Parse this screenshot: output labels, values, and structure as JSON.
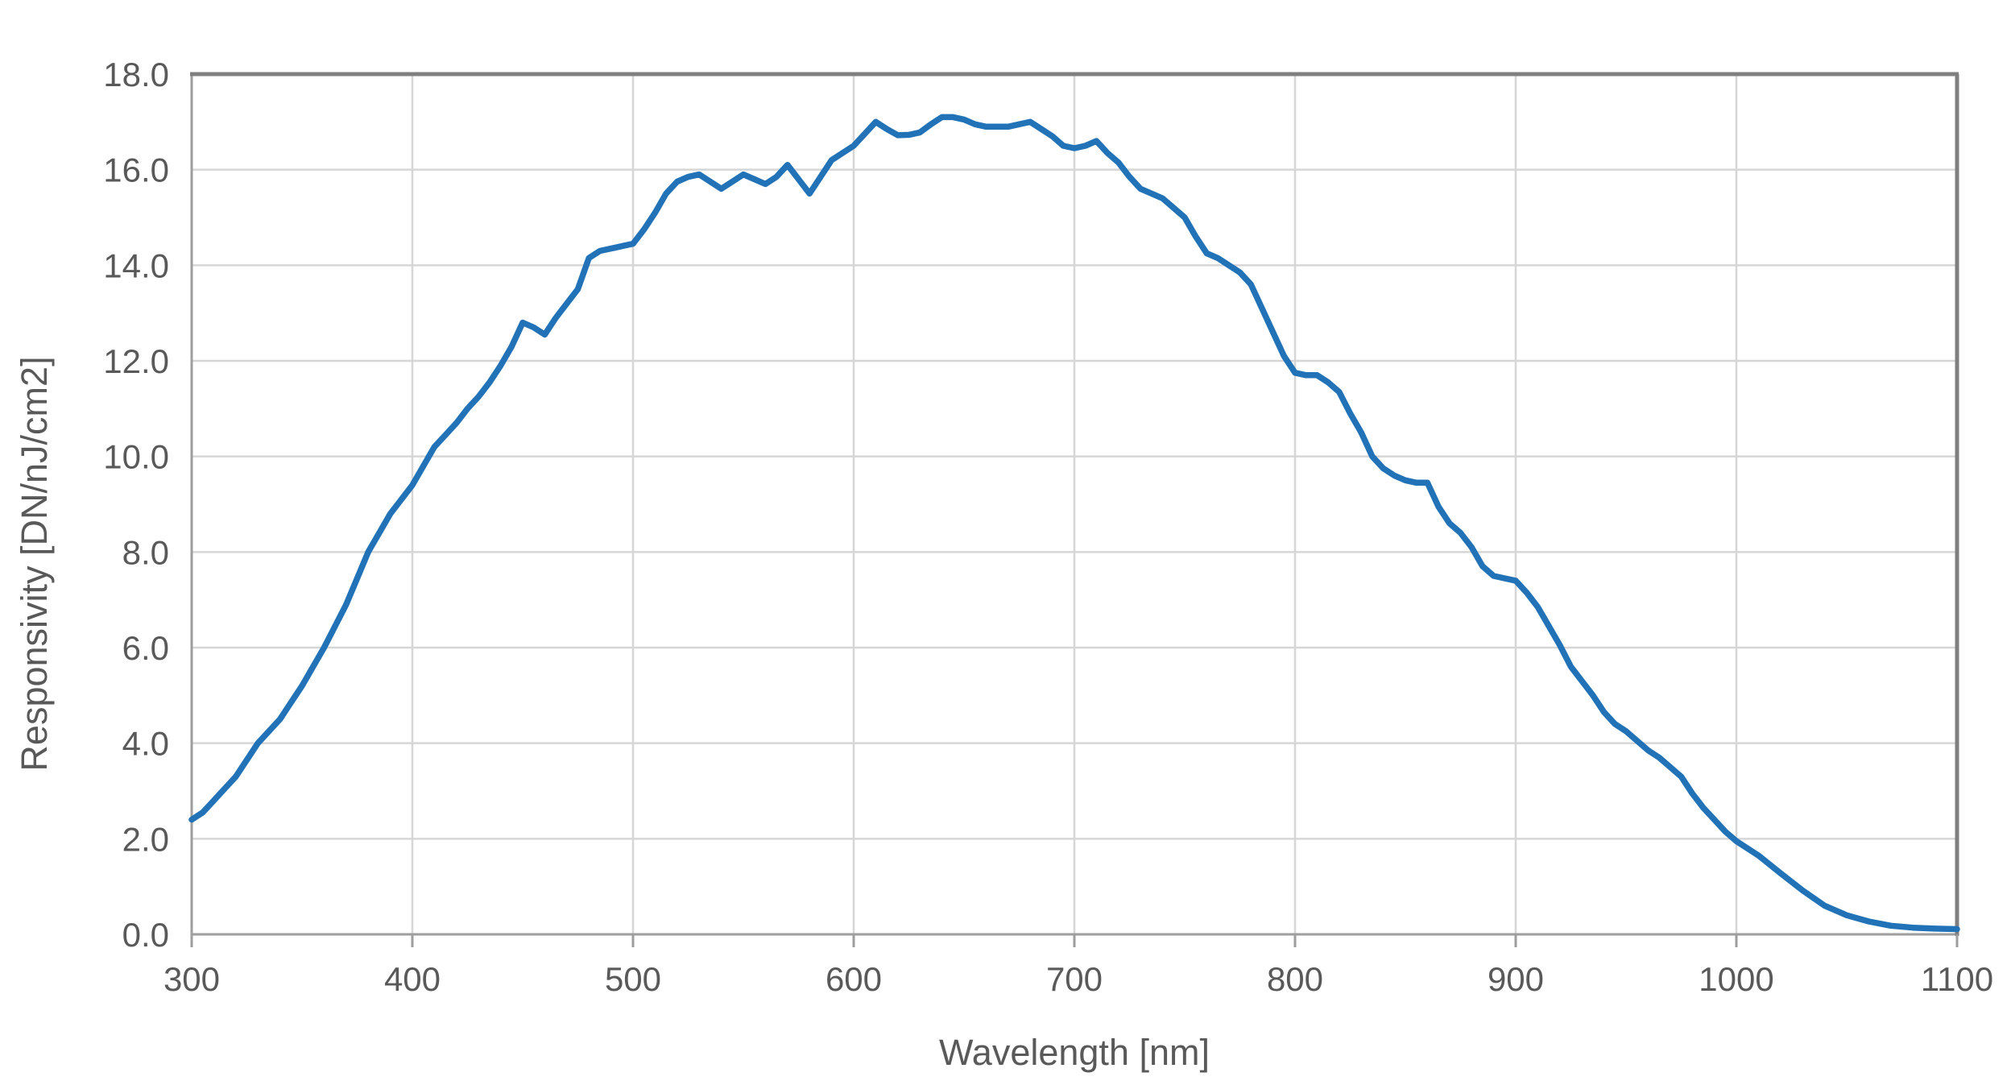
{
  "chart_data": {
    "type": "line",
    "title": "",
    "xlabel": "Wavelength [nm]",
    "ylabel": "Responsivity [DN/nJ/cm2]",
    "xlim": [
      300,
      1100
    ],
    "ylim": [
      0,
      18
    ],
    "grid": true,
    "legend": "none",
    "x_ticks": [
      300,
      400,
      500,
      600,
      700,
      800,
      900,
      1000,
      1100
    ],
    "x_tick_labels": [
      "300",
      "400",
      "500",
      "600",
      "700",
      "800",
      "900",
      "1000",
      "1100"
    ],
    "y_ticks": [
      0,
      2,
      4,
      6,
      8,
      10,
      12,
      14,
      16,
      18
    ],
    "y_tick_labels": [
      "0.0",
      "2.0",
      "4.0",
      "6.0",
      "8.0",
      "10.0",
      "12.0",
      "14.0",
      "16.0",
      "18.0"
    ],
    "series": [
      {
        "name": "Responsivity",
        "color": "#2272B8",
        "points": [
          [
            300,
            2.4
          ],
          [
            305,
            2.55
          ],
          [
            310,
            2.8
          ],
          [
            315,
            3.05
          ],
          [
            320,
            3.3
          ],
          [
            325,
            3.65
          ],
          [
            330,
            4.0
          ],
          [
            335,
            4.25
          ],
          [
            340,
            4.5
          ],
          [
            345,
            4.85
          ],
          [
            350,
            5.2
          ],
          [
            355,
            5.6
          ],
          [
            360,
            6.0
          ],
          [
            365,
            6.45
          ],
          [
            370,
            6.9
          ],
          [
            375,
            7.45
          ],
          [
            380,
            8.0
          ],
          [
            385,
            8.4
          ],
          [
            390,
            8.8
          ],
          [
            395,
            9.1
          ],
          [
            400,
            9.4
          ],
          [
            405,
            9.8
          ],
          [
            410,
            10.2
          ],
          [
            415,
            10.45
          ],
          [
            420,
            10.7
          ],
          [
            425,
            11.0
          ],
          [
            430,
            11.25
          ],
          [
            435,
            11.55
          ],
          [
            440,
            11.9
          ],
          [
            445,
            12.3
          ],
          [
            450,
            12.8
          ],
          [
            455,
            12.7
          ],
          [
            460,
            12.55
          ],
          [
            465,
            12.9
          ],
          [
            470,
            13.2
          ],
          [
            475,
            13.5
          ],
          [
            480,
            14.15
          ],
          [
            485,
            14.3
          ],
          [
            490,
            14.35
          ],
          [
            495,
            14.4
          ],
          [
            500,
            14.45
          ],
          [
            505,
            14.75
          ],
          [
            510,
            15.1
          ],
          [
            515,
            15.5
          ],
          [
            520,
            15.75
          ],
          [
            525,
            15.85
          ],
          [
            530,
            15.9
          ],
          [
            535,
            15.75
          ],
          [
            540,
            15.6
          ],
          [
            545,
            15.75
          ],
          [
            550,
            15.9
          ],
          [
            555,
            15.8
          ],
          [
            560,
            15.7
          ],
          [
            565,
            15.85
          ],
          [
            570,
            16.1
          ],
          [
            575,
            15.8
          ],
          [
            580,
            15.5
          ],
          [
            585,
            15.85
          ],
          [
            590,
            16.2
          ],
          [
            595,
            16.35
          ],
          [
            600,
            16.5
          ],
          [
            605,
            16.75
          ],
          [
            610,
            17.0
          ],
          [
            615,
            16.85
          ],
          [
            620,
            16.72
          ],
          [
            625,
            16.73
          ],
          [
            630,
            16.78
          ],
          [
            635,
            16.95
          ],
          [
            640,
            17.1
          ],
          [
            645,
            17.1
          ],
          [
            650,
            17.05
          ],
          [
            655,
            16.95
          ],
          [
            660,
            16.9
          ],
          [
            665,
            16.9
          ],
          [
            670,
            16.9
          ],
          [
            675,
            16.95
          ],
          [
            680,
            17.0
          ],
          [
            685,
            16.85
          ],
          [
            690,
            16.7
          ],
          [
            695,
            16.5
          ],
          [
            700,
            16.45
          ],
          [
            705,
            16.5
          ],
          [
            710,
            16.6
          ],
          [
            715,
            16.35
          ],
          [
            720,
            16.15
          ],
          [
            725,
            15.85
          ],
          [
            730,
            15.6
          ],
          [
            735,
            15.5
          ],
          [
            740,
            15.4
          ],
          [
            745,
            15.2
          ],
          [
            750,
            15.0
          ],
          [
            755,
            14.6
          ],
          [
            760,
            14.25
          ],
          [
            765,
            14.15
          ],
          [
            770,
            14.0
          ],
          [
            775,
            13.85
          ],
          [
            780,
            13.6
          ],
          [
            785,
            13.1
          ],
          [
            790,
            12.6
          ],
          [
            795,
            12.1
          ],
          [
            800,
            11.75
          ],
          [
            805,
            11.7
          ],
          [
            810,
            11.7
          ],
          [
            815,
            11.55
          ],
          [
            820,
            11.35
          ],
          [
            825,
            10.9
          ],
          [
            830,
            10.5
          ],
          [
            835,
            10.0
          ],
          [
            840,
            9.75
          ],
          [
            845,
            9.6
          ],
          [
            850,
            9.5
          ],
          [
            855,
            9.45
          ],
          [
            860,
            9.45
          ],
          [
            865,
            8.95
          ],
          [
            870,
            8.6
          ],
          [
            875,
            8.4
          ],
          [
            880,
            8.1
          ],
          [
            885,
            7.7
          ],
          [
            890,
            7.5
          ],
          [
            895,
            7.45
          ],
          [
            900,
            7.4
          ],
          [
            905,
            7.15
          ],
          [
            910,
            6.85
          ],
          [
            915,
            6.45
          ],
          [
            920,
            6.05
          ],
          [
            925,
            5.6
          ],
          [
            930,
            5.3
          ],
          [
            935,
            5.0
          ],
          [
            940,
            4.65
          ],
          [
            945,
            4.4
          ],
          [
            950,
            4.25
          ],
          [
            955,
            4.05
          ],
          [
            960,
            3.85
          ],
          [
            965,
            3.7
          ],
          [
            970,
            3.5
          ],
          [
            975,
            3.3
          ],
          [
            980,
            2.95
          ],
          [
            985,
            2.65
          ],
          [
            990,
            2.4
          ],
          [
            995,
            2.15
          ],
          [
            1000,
            1.95
          ],
          [
            1010,
            1.65
          ],
          [
            1020,
            1.28
          ],
          [
            1030,
            0.92
          ],
          [
            1040,
            0.6
          ],
          [
            1050,
            0.4
          ],
          [
            1060,
            0.27
          ],
          [
            1070,
            0.18
          ],
          [
            1080,
            0.14
          ],
          [
            1090,
            0.12
          ],
          [
            1100,
            0.11
          ]
        ]
      }
    ]
  },
  "styles": {
    "line_color": "#2272B8",
    "gridline_color": "#D6D6D6",
    "axis_color": "#9E9E9E",
    "border_dark_color": "#7F7F7F",
    "text_color": "#595959",
    "background_color": "#FFFFFF"
  }
}
